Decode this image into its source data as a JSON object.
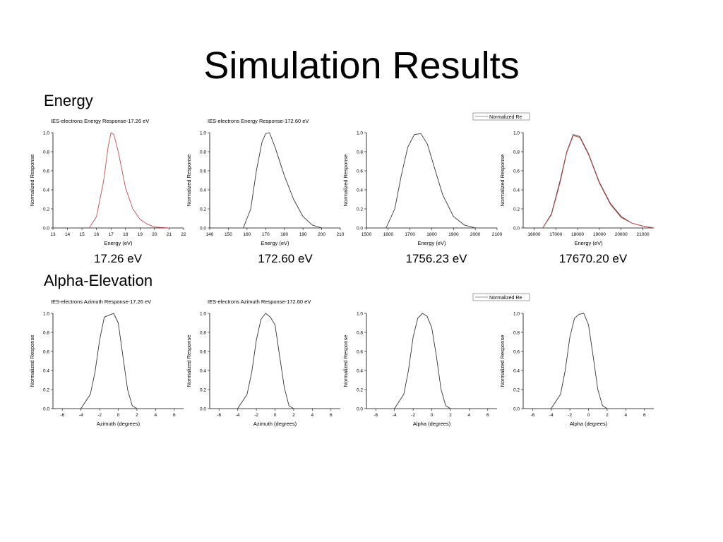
{
  "slide": {
    "title": "Simulation Results",
    "energy_heading": "Energy",
    "alpha_heading": "Alpha-Elevation",
    "captions": [
      "17.26 eV",
      "172.60 eV",
      "1756.23 eV",
      "17670.20 eV"
    ]
  },
  "chart_data": [
    {
      "type": "line",
      "title": "IES-electrons Energy Response-17.26 eV",
      "xlabel": "Energy (eV)",
      "ylabel": "Normalized Response",
      "xlim": [
        13,
        22
      ],
      "ylim": [
        0,
        1.0
      ],
      "xticks": [
        13,
        14,
        15,
        16,
        17,
        18,
        19,
        20,
        21,
        22
      ],
      "yticks": [
        0.0,
        0.2,
        0.4,
        0.6,
        0.8,
        1.0
      ],
      "series": [
        {
          "color": "#c0504d",
          "x": [
            15.5,
            16.0,
            16.5,
            16.8,
            17.0,
            17.2,
            17.5,
            18.0,
            18.5,
            19.0,
            19.5,
            20.0,
            21.0
          ],
          "y": [
            0.0,
            0.12,
            0.5,
            0.85,
            1.0,
            0.98,
            0.8,
            0.42,
            0.2,
            0.09,
            0.04,
            0.01,
            0.0
          ]
        }
      ]
    },
    {
      "type": "line",
      "title": "IES-electrons Energy Response-172.60 eV",
      "xlabel": "Energy (eV)",
      "ylabel": "Normalized Response",
      "xlim": [
        140,
        210
      ],
      "ylim": [
        0,
        1.0
      ],
      "xticks": [
        140,
        150,
        160,
        170,
        180,
        190,
        200,
        210
      ],
      "yticks": [
        0.0,
        0.2,
        0.4,
        0.6,
        0.8,
        1.0
      ],
      "series": [
        {
          "color": "#333333",
          "x": [
            158,
            162,
            165,
            168,
            170,
            172,
            175,
            180,
            185,
            190,
            195,
            200
          ],
          "y": [
            0.0,
            0.2,
            0.6,
            0.9,
            0.99,
            1.0,
            0.85,
            0.55,
            0.3,
            0.12,
            0.03,
            0.0
          ]
        }
      ]
    },
    {
      "type": "line",
      "title": "",
      "legend": "Normalized Re",
      "xlabel": "Energy (eV)",
      "ylabel": "Normalized Response",
      "xlim": [
        1500,
        2100
      ],
      "ylim": [
        0,
        1.0
      ],
      "xticks": [
        1500,
        1600,
        1700,
        1800,
        1900,
        2000,
        2100
      ],
      "yticks": [
        0.0,
        0.2,
        0.4,
        0.6,
        0.8,
        1.0
      ],
      "series": [
        {
          "color": "#333333",
          "x": [
            1590,
            1630,
            1660,
            1690,
            1720,
            1750,
            1780,
            1810,
            1850,
            1900,
            1950,
            2000
          ],
          "y": [
            0.0,
            0.2,
            0.55,
            0.85,
            0.98,
            0.99,
            0.88,
            0.65,
            0.35,
            0.12,
            0.03,
            0.0
          ]
        }
      ]
    },
    {
      "type": "line",
      "title": "",
      "xlabel": "Energy (eV)",
      "ylabel": "Normalized Response",
      "xlim": [
        15500,
        21500
      ],
      "ylim": [
        0,
        1.0
      ],
      "xticks": [
        16000,
        17000,
        18000,
        19000,
        20000,
        21000
      ],
      "yticks": [
        0.0,
        0.2,
        0.4,
        0.6,
        0.8,
        1.0
      ],
      "series": [
        {
          "color": "#333333",
          "x": [
            16400,
            16800,
            17200,
            17500,
            17800,
            18100,
            18500,
            19000,
            19500,
            20000,
            20500,
            21000,
            21500
          ],
          "y": [
            0.0,
            0.15,
            0.5,
            0.8,
            0.98,
            0.96,
            0.78,
            0.48,
            0.26,
            0.12,
            0.05,
            0.02,
            0.0
          ]
        },
        {
          "color": "#c0504d",
          "x": [
            16400,
            16800,
            17200,
            17500,
            17800,
            18100,
            18500,
            19000,
            19500,
            20000,
            20500,
            21000,
            21500
          ],
          "y": [
            0.0,
            0.14,
            0.48,
            0.79,
            0.97,
            0.95,
            0.77,
            0.47,
            0.25,
            0.11,
            0.05,
            0.02,
            0.0
          ]
        }
      ]
    },
    {
      "type": "line",
      "title": "IES-electrons Azimuth Response-17.26 eV",
      "xlabel": "Azimuth (degrees)",
      "ylabel": "Normalized Response",
      "xlim": [
        -7,
        7
      ],
      "ylim": [
        0,
        1.0
      ],
      "xticks": [
        -6,
        -4,
        -2,
        0,
        2,
        4,
        6
      ],
      "yticks": [
        0.0,
        0.2,
        0.4,
        0.6,
        0.8,
        1.0
      ],
      "series": [
        {
          "color": "#333333",
          "x": [
            -4,
            -3,
            -2.5,
            -2,
            -1.5,
            -1,
            -0.5,
            0,
            0.5,
            1,
            1.5,
            2
          ],
          "y": [
            0.0,
            0.15,
            0.38,
            0.72,
            0.96,
            0.98,
            1.0,
            0.9,
            0.55,
            0.2,
            0.03,
            0.0
          ]
        }
      ]
    },
    {
      "type": "line",
      "title": "IES-electrons Azimuth Response-172.60 eV",
      "xlabel": "Azimuth (degrees)",
      "ylabel": "Normalized Response",
      "xlim": [
        -7,
        7
      ],
      "ylim": [
        0,
        1.0
      ],
      "xticks": [
        -6,
        -4,
        -2,
        0,
        2,
        4,
        6
      ],
      "yticks": [
        0.0,
        0.2,
        0.4,
        0.6,
        0.8,
        1.0
      ],
      "series": [
        {
          "color": "#333333",
          "x": [
            -4,
            -3,
            -2.5,
            -2,
            -1.5,
            -1,
            -0.5,
            0,
            0.5,
            1,
            1.5,
            2
          ],
          "y": [
            0.0,
            0.15,
            0.38,
            0.72,
            0.94,
            1.0,
            0.96,
            0.88,
            0.55,
            0.22,
            0.03,
            0.0
          ]
        }
      ]
    },
    {
      "type": "line",
      "title": "",
      "legend": "Normalized Re",
      "xlabel": "Alpha (degrees)",
      "ylabel": "Normalized Response",
      "xlim": [
        -7,
        7
      ],
      "ylim": [
        0,
        1.0
      ],
      "xticks": [
        -6,
        -4,
        -2,
        0,
        2,
        4,
        6
      ],
      "yticks": [
        0.0,
        0.2,
        0.4,
        0.6,
        0.8,
        1.0
      ],
      "series": [
        {
          "color": "#333333",
          "x": [
            -4,
            -3,
            -2.5,
            -2,
            -1.5,
            -1,
            -0.5,
            0,
            0.5,
            1,
            1.5,
            2
          ],
          "y": [
            0.0,
            0.15,
            0.4,
            0.75,
            0.95,
            1.0,
            0.97,
            0.85,
            0.55,
            0.2,
            0.03,
            0.0
          ]
        }
      ]
    },
    {
      "type": "line",
      "title": "",
      "xlabel": "Alpha (degrees)",
      "ylabel": "Normalized Response",
      "xlim": [
        -7,
        7
      ],
      "ylim": [
        0,
        1.0
      ],
      "xticks": [
        -6,
        -4,
        -2,
        0,
        2,
        4,
        6
      ],
      "yticks": [
        0.0,
        0.2,
        0.4,
        0.6,
        0.8,
        1.0
      ],
      "series": [
        {
          "color": "#333333",
          "x": [
            -4,
            -3,
            -2.5,
            -2,
            -1.5,
            -1,
            -0.5,
            0,
            0.5,
            1,
            1.5,
            2
          ],
          "y": [
            0.0,
            0.15,
            0.4,
            0.75,
            0.95,
            0.99,
            1.0,
            0.88,
            0.55,
            0.2,
            0.03,
            0.0
          ]
        }
      ]
    }
  ]
}
